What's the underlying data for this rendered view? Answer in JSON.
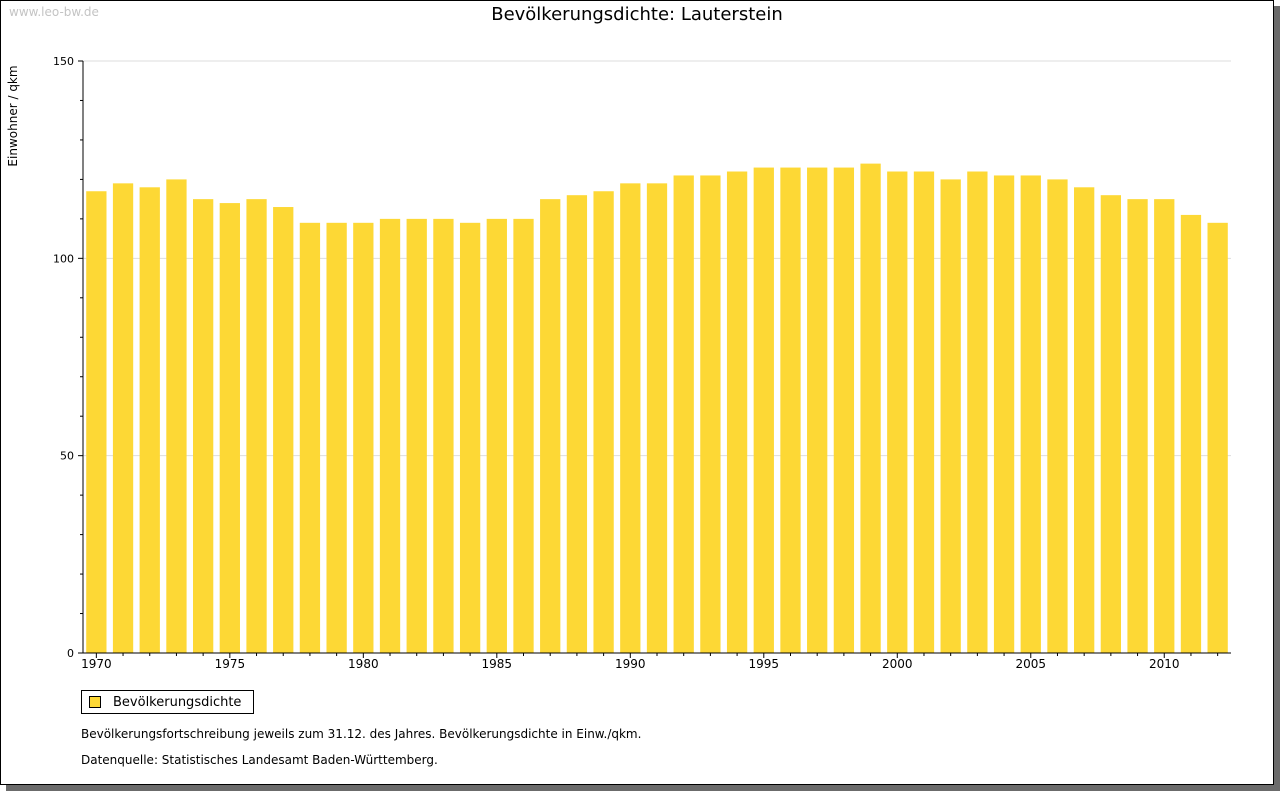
{
  "watermark": "www.leo-bw.de",
  "chart_data": {
    "type": "bar",
    "title": "Bevölkerungsdichte: Lauterstein",
    "xlabel": "",
    "ylabel": "Einwohner / qkm",
    "ylim": [
      0,
      150
    ],
    "yticks": [
      0,
      50,
      100,
      150
    ],
    "xtick_labels": [
      "1970",
      "1975",
      "1980",
      "1985",
      "1990",
      "1995",
      "2000",
      "2005",
      "2010"
    ],
    "categories": [
      1970,
      1971,
      1972,
      1973,
      1974,
      1975,
      1976,
      1977,
      1978,
      1979,
      1980,
      1981,
      1982,
      1983,
      1984,
      1985,
      1986,
      1987,
      1988,
      1989,
      1990,
      1991,
      1992,
      1993,
      1994,
      1995,
      1996,
      1997,
      1998,
      1999,
      2000,
      2001,
      2002,
      2003,
      2004,
      2005,
      2006,
      2007,
      2008,
      2009,
      2010,
      2011,
      2012
    ],
    "series": [
      {
        "name": "Bevölkerungsdichte",
        "color": "#FDD835",
        "values": [
          117,
          119,
          118,
          120,
          115,
          114,
          115,
          113,
          109,
          109,
          109,
          110,
          110,
          110,
          109,
          110,
          110,
          115,
          116,
          117,
          119,
          119,
          121,
          121,
          122,
          123,
          123,
          123,
          123,
          124,
          122,
          122,
          120,
          122,
          121,
          121,
          120,
          118,
          116,
          115,
          115,
          111,
          109
        ]
      }
    ],
    "grid": true,
    "legend": "bottom-left"
  },
  "footer": {
    "note": "Bevölkerungsfortschreibung jeweils zum 31.12. des Jahres. Bevölkerungsdichte in Einw./qkm.",
    "source": "Datenquelle: Statistisches Landesamt Baden-Württemberg."
  }
}
